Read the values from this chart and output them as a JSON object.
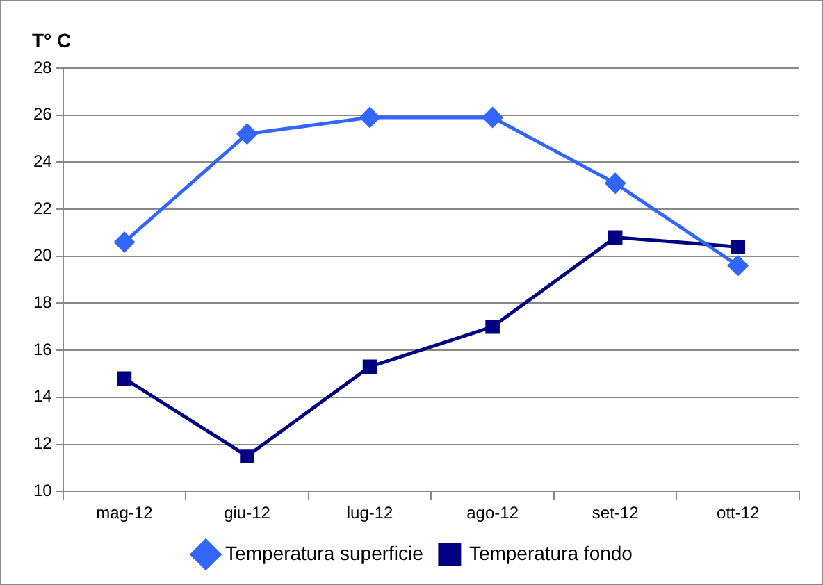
{
  "chart_data": {
    "type": "line",
    "ylabel": "T° C",
    "categories": [
      "mag-12",
      "giu-12",
      "lug-12",
      "ago-12",
      "set-12",
      "ott-12"
    ],
    "series": [
      {
        "name": "Temperatura superficie",
        "color": "#3366ff",
        "marker": "diamond",
        "values": [
          20.6,
          25.2,
          25.9,
          25.9,
          23.1,
          19.6
        ]
      },
      {
        "name": "Temperatura fondo",
        "color": "#000080",
        "marker": "square",
        "values": [
          14.8,
          11.5,
          15.3,
          17.0,
          20.8,
          20.4
        ]
      }
    ],
    "ylim": [
      10,
      28
    ],
    "yticks": [
      10,
      12,
      14,
      16,
      18,
      20,
      22,
      24,
      26,
      28
    ],
    "grid": "y",
    "legend": "bottom",
    "line_style": "solid"
  }
}
